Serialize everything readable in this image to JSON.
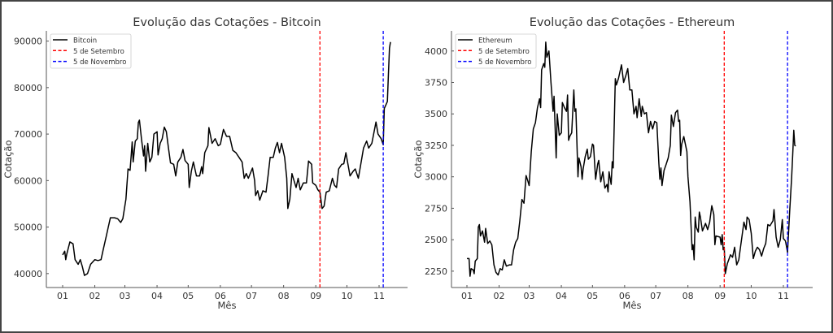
{
  "chart_data": [
    {
      "type": "line",
      "title": "Evolução das Cotações - Bitcoin",
      "xlabel": "Mês",
      "ylabel": "Cotação",
      "x_ticks": [
        "01",
        "02",
        "03",
        "04",
        "05",
        "06",
        "07",
        "08",
        "09",
        "10",
        "11"
      ],
      "y_ticks": [
        40000,
        50000,
        60000,
        70000,
        80000,
        90000
      ],
      "ylim": [
        37000,
        92200
      ],
      "grid": false,
      "legend_position": "top-left",
      "series": [
        {
          "name": "Bitcoin",
          "color": "#000000",
          "x": [
            "01-01",
            "01-03",
            "01-04",
            "01-05",
            "01-08",
            "01-11",
            "01-13",
            "01-16",
            "01-18",
            "01-20",
            "01-22",
            "01-25",
            "01-28",
            "02-01",
            "02-04",
            "02-07",
            "02-09",
            "02-12",
            "02-14",
            "02-16",
            "02-20",
            "02-23",
            "02-26",
            "02-28",
            "03-02",
            "03-04",
            "03-06",
            "03-08",
            "03-09",
            "03-11",
            "03-13",
            "03-14",
            "03-15",
            "03-17",
            "03-19",
            "03-20",
            "03-21",
            "03-23",
            "03-25",
            "03-27",
            "03-29",
            "04-01",
            "04-02",
            "04-04",
            "04-06",
            "04-08",
            "04-10",
            "04-12",
            "04-14",
            "04-17",
            "04-19",
            "04-21",
            "04-24",
            "04-26",
            "04-28",
            "05-01",
            "05-02",
            "05-04",
            "05-06",
            "05-09",
            "05-12",
            "05-14",
            "05-15",
            "05-17",
            "05-20",
            "05-21",
            "05-24",
            "05-27",
            "05-30",
            "06-01",
            "06-04",
            "06-07",
            "06-10",
            "06-13",
            "06-16",
            "06-19",
            "06-22",
            "06-24",
            "06-26",
            "06-28",
            "07-02",
            "07-04",
            "07-05",
            "07-07",
            "07-09",
            "07-12",
            "07-15",
            "07-17",
            "07-19",
            "07-22",
            "07-24",
            "07-26",
            "07-28",
            "07-30",
            "08-02",
            "08-04",
            "08-05",
            "08-07",
            "08-09",
            "08-11",
            "08-13",
            "08-15",
            "08-17",
            "08-20",
            "08-23",
            "08-25",
            "08-28",
            "08-29",
            "09-01",
            "09-03",
            "09-05",
            "09-07",
            "09-09",
            "09-11",
            "09-14",
            "09-17",
            "09-19",
            "09-21",
            "09-23",
            "09-26",
            "09-28",
            "09-30",
            "10-04",
            "10-07",
            "10-09",
            "10-12",
            "10-14",
            "10-17",
            "10-20",
            "10-22",
            "10-25",
            "10-29",
            "10-31",
            "11-03",
            "11-05",
            "11-06",
            "11-09",
            "11-10",
            "11-11",
            "11-12"
          ],
          "y": [
            44000,
            44800,
            43000,
            44200,
            46800,
            46400,
            43000,
            42000,
            43000,
            41500,
            39600,
            40000,
            42000,
            43000,
            42800,
            43000,
            45000,
            48000,
            50000,
            52000,
            52000,
            51800,
            51000,
            51800,
            56000,
            62500,
            62200,
            68300,
            64000,
            68500,
            69000,
            72500,
            73000,
            69000,
            65300,
            67500,
            62000,
            68000,
            64000,
            65000,
            70000,
            70500,
            65500,
            68000,
            69000,
            71500,
            70500,
            67000,
            63800,
            63500,
            61000,
            64000,
            65000,
            66700,
            64300,
            63500,
            58500,
            62000,
            64000,
            61000,
            61000,
            63000,
            61500,
            66000,
            67500,
            71400,
            68000,
            69000,
            67500,
            67800,
            71000,
            69500,
            69500,
            66500,
            66000,
            65000,
            64000,
            60500,
            61500,
            60500,
            62700,
            60000,
            56800,
            57800,
            55800,
            57800,
            57500,
            61000,
            65000,
            65000,
            67000,
            68200,
            66000,
            68000,
            65000,
            60500,
            54000,
            56000,
            61500,
            60000,
            58500,
            60500,
            58000,
            59500,
            59500,
            64200,
            63500,
            59500,
            59000,
            58000,
            57500,
            54000,
            54500,
            57500,
            57800,
            60500,
            59000,
            58500,
            62500,
            63500,
            63600,
            66000,
            61000,
            62000,
            62500,
            60500,
            63000,
            67000,
            68500,
            67000,
            68000,
            72600,
            70000,
            69000,
            67700,
            75500,
            77000,
            83000,
            88500,
            89800
          ]
        }
      ],
      "reference_lines": [
        {
          "label": "5 de Setembro",
          "date": "09-05",
          "color": "#ff0000",
          "style": "dashed"
        },
        {
          "label": "5 de Novembro",
          "date": "11-05",
          "color": "#0000ff",
          "style": "dashed"
        }
      ]
    },
    {
      "type": "line",
      "title": "Evolução das Cotações - Ethereum",
      "xlabel": "Mês",
      "ylabel": "Cotação",
      "x_ticks": [
        "01",
        "02",
        "03",
        "04",
        "05",
        "06",
        "07",
        "08",
        "09",
        "10",
        "11"
      ],
      "y_ticks": [
        2250,
        2500,
        2750,
        3000,
        3250,
        3500,
        3750,
        4000
      ],
      "ylim": [
        2120,
        4160
      ],
      "grid": false,
      "legend_position": "top-left",
      "series": [
        {
          "name": "Ethereum",
          "color": "#000000",
          "x": [
            "01-01",
            "01-03",
            "01-04",
            "01-05",
            "01-07",
            "01-08",
            "01-09",
            "01-11",
            "01-12",
            "01-13",
            "01-14",
            "01-16",
            "01-18",
            "01-19",
            "01-21",
            "01-23",
            "01-25",
            "01-27",
            "01-29",
            "01-31",
            "02-02",
            "02-04",
            "02-06",
            "02-08",
            "02-11",
            "02-13",
            "02-15",
            "02-17",
            "02-19",
            "02-21",
            "02-23",
            "02-25",
            "02-27",
            "02-29",
            "03-01",
            "03-03",
            "03-05",
            "03-07",
            "03-09",
            "03-11",
            "03-12",
            "03-13",
            "03-15",
            "03-16",
            "03-17",
            "03-18",
            "03-20",
            "03-22",
            "03-24",
            "03-25",
            "03-27",
            "03-28",
            "03-30",
            "04-01",
            "04-02",
            "04-04",
            "04-06",
            "04-07",
            "04-08",
            "04-09",
            "04-11",
            "04-13",
            "04-14",
            "04-15",
            "04-17",
            "04-18",
            "04-20",
            "04-21",
            "04-22",
            "04-24",
            "04-26",
            "04-27",
            "04-29",
            "05-01",
            "05-02",
            "05-04",
            "05-06",
            "05-07",
            "05-09",
            "05-11",
            "05-13",
            "05-15",
            "05-16",
            "05-17",
            "05-19",
            "05-20",
            "05-21",
            "05-23",
            "05-24",
            "05-26",
            "05-29",
            "05-31",
            "06-02",
            "06-04",
            "06-06",
            "06-08",
            "06-10",
            "06-12",
            "06-13",
            "06-15",
            "06-17",
            "06-18",
            "06-20",
            "06-22",
            "06-24",
            "06-26",
            "06-28",
            "06-30",
            "07-02",
            "07-04",
            "07-05",
            "07-06",
            "07-07",
            "07-09",
            "07-11",
            "07-13",
            "07-15",
            "07-16",
            "07-18",
            "07-20",
            "07-22",
            "07-23",
            "07-24",
            "07-25",
            "07-26",
            "07-28",
            "07-31",
            "08-01",
            "08-03",
            "08-05",
            "08-06",
            "08-07",
            "08-08",
            "08-09",
            "08-11",
            "08-12",
            "08-13",
            "08-15",
            "08-18",
            "08-20",
            "08-22",
            "08-24",
            "08-26",
            "08-27",
            "08-28",
            "09-01",
            "09-02",
            "09-03",
            "09-04",
            "09-05",
            "09-06",
            "09-08",
            "09-11",
            "09-13",
            "09-15",
            "09-17",
            "09-19",
            "09-21",
            "09-24",
            "09-26",
            "09-27",
            "09-29",
            "10-01",
            "10-03",
            "10-05",
            "10-07",
            "10-09",
            "10-11",
            "10-13",
            "10-15",
            "10-17",
            "10-19",
            "10-22",
            "10-23",
            "10-25",
            "10-27",
            "10-29",
            "10-31",
            "11-01",
            "11-03",
            "11-05",
            "11-07",
            "11-09",
            "11-10",
            "11-11",
            "11-12",
            "11-13"
          ],
          "y": [
            2350,
            2350,
            2210,
            2270,
            2260,
            2230,
            2330,
            2350,
            2600,
            2620,
            2530,
            2570,
            2480,
            2590,
            2470,
            2490,
            2460,
            2300,
            2240,
            2220,
            2270,
            2260,
            2340,
            2290,
            2300,
            2300,
            2420,
            2480,
            2510,
            2650,
            2820,
            2790,
            3010,
            2960,
            2930,
            3200,
            3380,
            3430,
            3550,
            3620,
            3550,
            3850,
            3900,
            3870,
            4070,
            3950,
            4000,
            3750,
            3520,
            3640,
            3150,
            3500,
            3330,
            3350,
            3590,
            3550,
            3520,
            3650,
            3290,
            3320,
            3350,
            3690,
            3520,
            3540,
            3000,
            3150,
            3080,
            2980,
            3060,
            3160,
            3220,
            3140,
            3160,
            3260,
            3250,
            2980,
            3100,
            3130,
            2960,
            3040,
            2910,
            2940,
            2880,
            3040,
            2940,
            3120,
            3070,
            3780,
            3730,
            3780,
            3890,
            3750,
            3800,
            3860,
            3690,
            3690,
            3500,
            3560,
            3470,
            3620,
            3480,
            3560,
            3500,
            3510,
            3350,
            3440,
            3380,
            3440,
            3430,
            3100,
            2980,
            3070,
            2930,
            3050,
            3100,
            3150,
            3250,
            3490,
            3400,
            3510,
            3530,
            3440,
            3450,
            3170,
            3260,
            3320,
            3200,
            3000,
            2800,
            2420,
            2460,
            2340,
            2680,
            2600,
            2560,
            2720,
            2680,
            2570,
            2630,
            2580,
            2640,
            2770,
            2700,
            2460,
            2530,
            2520,
            2460,
            2540,
            2420,
            2440,
            2230,
            2310,
            2380,
            2360,
            2440,
            2300,
            2340,
            2460,
            2640,
            2580,
            2680,
            2660,
            2550,
            2350,
            2410,
            2440,
            2420,
            2370,
            2430,
            2470,
            2620,
            2610,
            2650,
            2740,
            2520,
            2440,
            2500,
            2660,
            2510,
            2490,
            2400,
            2720,
            3000,
            3180,
            3370,
            3250,
            3245
          ]
        }
      ],
      "reference_lines": [
        {
          "label": "5 de Setembro",
          "date": "09-05",
          "color": "#ff0000",
          "style": "dashed"
        },
        {
          "label": "5 de Novembro",
          "date": "11-05",
          "color": "#0000ff",
          "style": "dashed"
        }
      ]
    }
  ]
}
